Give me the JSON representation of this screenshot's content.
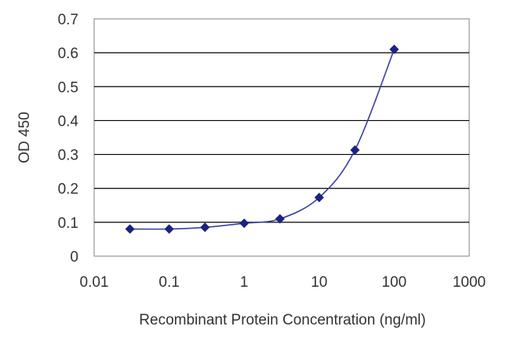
{
  "chart_data": {
    "type": "scatter",
    "title": "",
    "xlabel": "Recombinant Protein Concentration (ng/ml)",
    "ylabel": "OD 450",
    "x_scale": "log",
    "xlim": [
      0.01,
      1000
    ],
    "ylim": [
      0,
      0.7
    ],
    "x_ticks": [
      "0.01",
      "0.1",
      "1",
      "10",
      "100",
      "1000"
    ],
    "y_ticks": [
      "0",
      "0.1",
      "0.2",
      "0.3",
      "0.4",
      "0.5",
      "0.6",
      "0.7"
    ],
    "grid": "horizontal",
    "legend": "none",
    "series": [
      {
        "x": [
          0.03,
          0.1,
          0.3,
          1,
          3,
          10,
          30,
          100
        ],
        "y": [
          0.08,
          0.08,
          0.085,
          0.097,
          0.11,
          0.173,
          0.313,
          0.61
        ],
        "marker": "diamond",
        "fit_line": true
      }
    ],
    "colors": {
      "series": "#1a237e",
      "line": "#3a3f9e",
      "grid": "#000000",
      "frame": "#808080"
    }
  }
}
